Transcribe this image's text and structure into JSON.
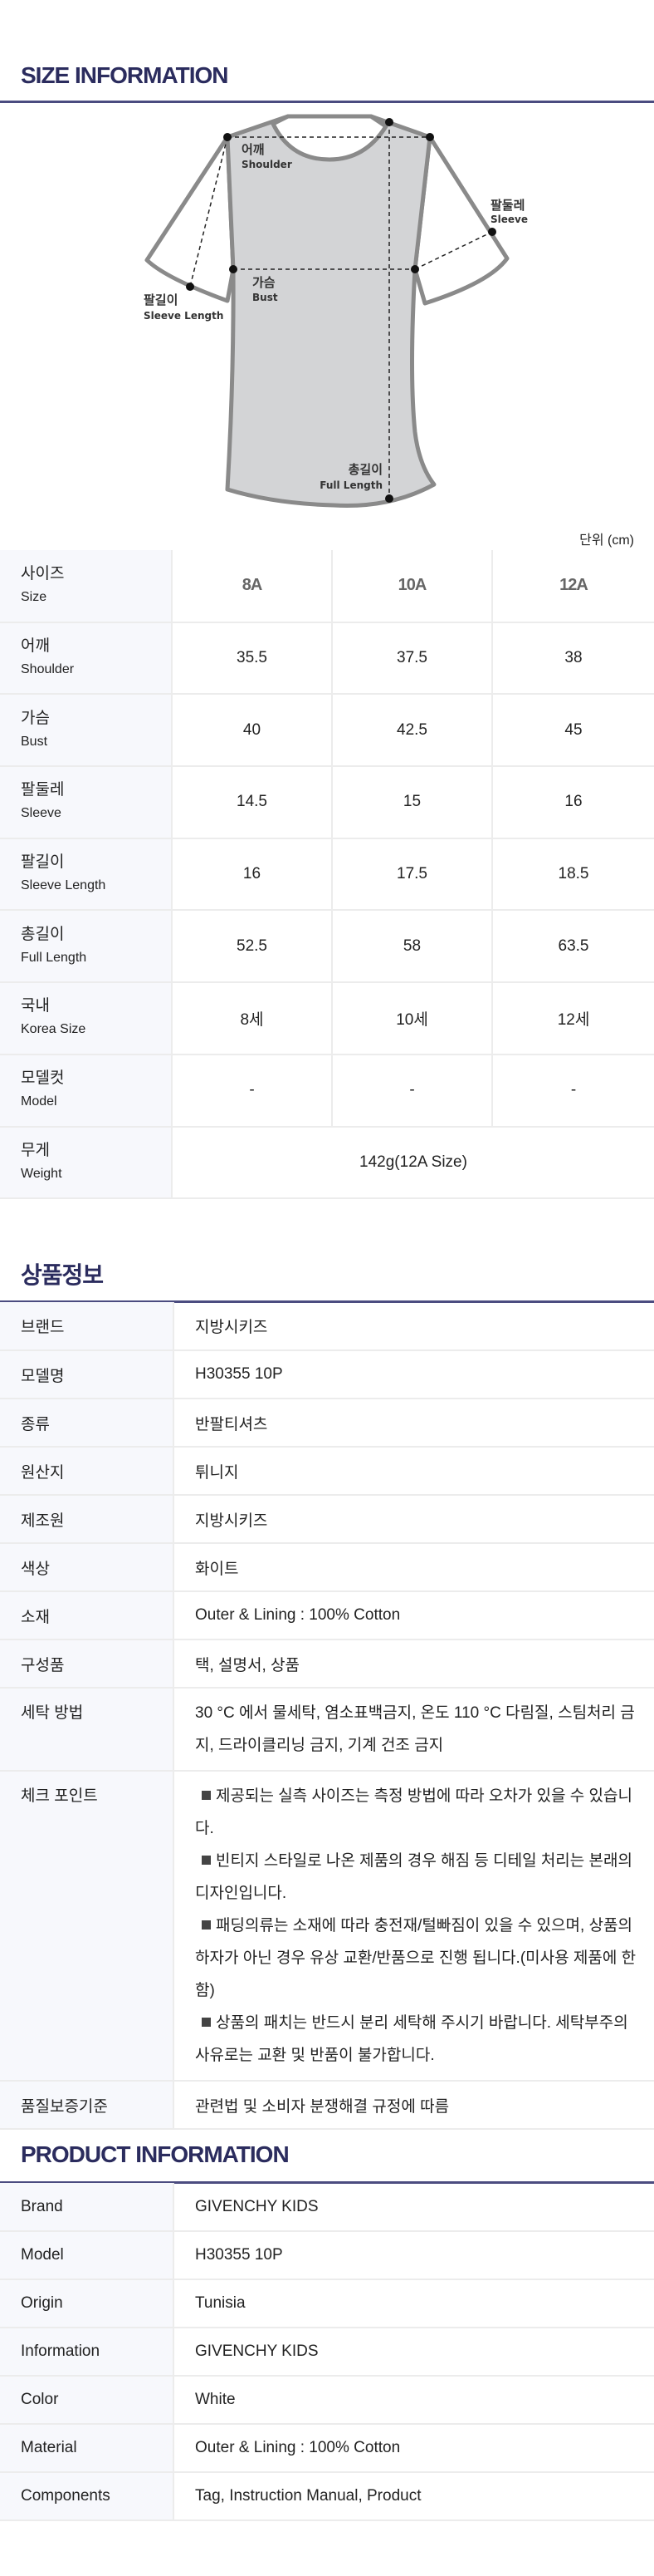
{
  "size_info": {
    "title": "SIZE INFORMATION",
    "diagram": {
      "shoulder": {
        "ko": "어깨",
        "en": "Shoulder"
      },
      "sleeve": {
        "ko": "팔둘레",
        "en": "Sleeve"
      },
      "sleeve_length": {
        "ko": "팔길이",
        "en": "Sleeve Length"
      },
      "bust": {
        "ko": "가슴",
        "en": "Bust"
      },
      "full_length": {
        "ko": "총길이",
        "en": "Full Length"
      }
    },
    "unit": "단위 (cm)",
    "header": {
      "ko": "사이즈",
      "en": "Size",
      "sizes": [
        "8A",
        "10A",
        "12A"
      ]
    },
    "rows": [
      {
        "ko": "어깨",
        "en": "Shoulder",
        "values": [
          "35.5",
          "37.5",
          "38"
        ]
      },
      {
        "ko": "가슴",
        "en": "Bust",
        "values": [
          "40",
          "42.5",
          "45"
        ]
      },
      {
        "ko": "팔둘레",
        "en": "Sleeve",
        "values": [
          "14.5",
          "15",
          "16"
        ]
      },
      {
        "ko": "팔길이",
        "en": "Sleeve Length",
        "values": [
          "16",
          "17.5",
          "18.5"
        ]
      },
      {
        "ko": "총길이",
        "en": "Full Length",
        "values": [
          "52.5",
          "58",
          "63.5"
        ]
      },
      {
        "ko": "국내",
        "en": "Korea Size",
        "values": [
          "8세",
          "10세",
          "12세"
        ]
      },
      {
        "ko": "모델컷",
        "en": "Model",
        "values": [
          "-",
          "-",
          "-"
        ]
      }
    ],
    "weight": {
      "ko": "무게",
      "en": "Weight",
      "value": "142g(12A Size)"
    }
  },
  "product_ko": {
    "title": "상품정보",
    "rows": [
      {
        "label": "브랜드",
        "value": "지방시키즈"
      },
      {
        "label": "모델명",
        "value": "H30355 10P"
      },
      {
        "label": "종류",
        "value": "반팔티셔츠"
      },
      {
        "label": "원산지",
        "value": "튀니지"
      },
      {
        "label": "제조원",
        "value": "지방시키즈"
      },
      {
        "label": "색상",
        "value": "화이트"
      },
      {
        "label": "소재",
        "value": "Outer & Lining : 100% Cotton"
      },
      {
        "label": "구성품",
        "value": "택, 설명서, 상품"
      },
      {
        "label": "세탁 방법",
        "value": "30 °C 에서 물세탁, 염소표백금지, 온도 110 °C 다림질, 스팀처리 금지, 드라이클리닝 금지, 기계 건조 금지"
      }
    ],
    "checkpoint": {
      "label": "체크 포인트",
      "items": [
        "제공되는 실측 사이즈는 측정 방법에 따라 오차가 있을 수 있습니다.",
        "빈티지 스타일로 나온 제품의 경우 해짐 등 디테일 처리는 본래의 디자인입니다.",
        "패딩의류는 소재에 따라 충전재/털빠짐이 있을 수 있으며, 상품의 하자가 아닌 경우 유상 교환/반품으로 진행 됩니다.(미사용 제품에 한함)",
        "상품의 패치는 반드시 분리 세탁해 주시기 바랍니다. 세탁부주의 사유로는 교환 및 반품이 불가합니다."
      ]
    },
    "quality": {
      "label": "품질보증기준",
      "value": "관련법 및 소비자 분쟁해결 규정에 따름"
    }
  },
  "product_en": {
    "title": "PRODUCT INFORMATION",
    "rows": [
      {
        "label": "Brand",
        "value": "GIVENCHY KIDS"
      },
      {
        "label": "Model",
        "value": "H30355 10P"
      },
      {
        "label": "Origin",
        "value": "Tunisia"
      },
      {
        "label": "Information",
        "value": "GIVENCHY KIDS"
      },
      {
        "label": "Color",
        "value": "White"
      },
      {
        "label": "Material",
        "value": "Outer & Lining : 100% Cotton"
      },
      {
        "label": "Components",
        "value": "Tag, Instruction Manual, Product"
      }
    ]
  },
  "colors": {
    "title": "#2b2c5e",
    "rule": "#4b4c80",
    "label_bg": "#f7f8fc",
    "shirt_fill": "#d3d4d6",
    "shirt_stroke": "#8a8a8a"
  }
}
